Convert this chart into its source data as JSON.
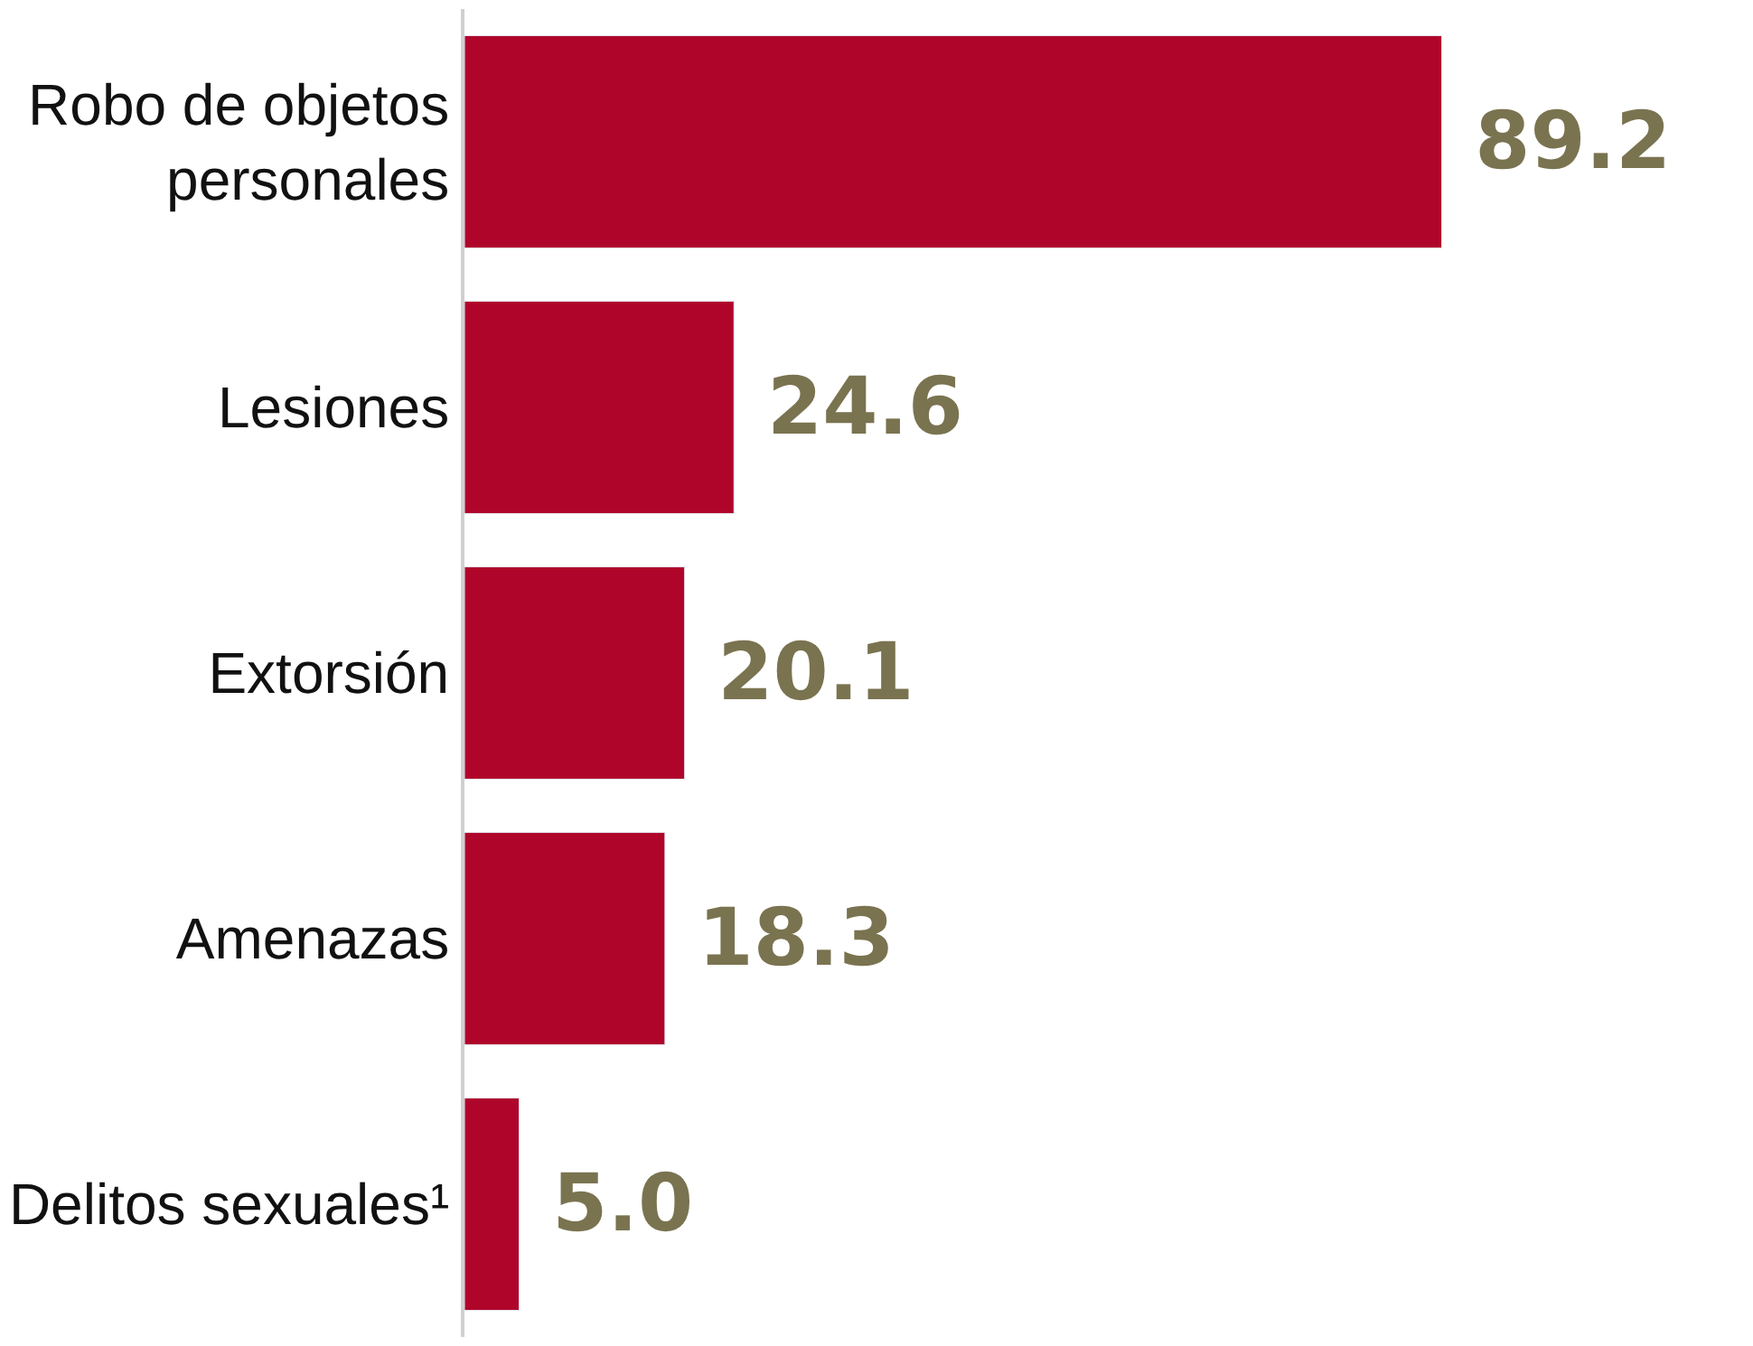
{
  "chart_data": {
    "type": "bar",
    "orientation": "horizontal",
    "categories": [
      "Robo de objetos personales",
      "Lesiones",
      "Extorsión",
      "Amenazas",
      "Delitos sexuales¹"
    ],
    "values": [
      89.2,
      24.6,
      20.1,
      18.3,
      5.0
    ],
    "value_labels": [
      "89.2",
      "24.6",
      "20.1",
      "18.3",
      "5.0"
    ],
    "color": "#b0052b"
  }
}
